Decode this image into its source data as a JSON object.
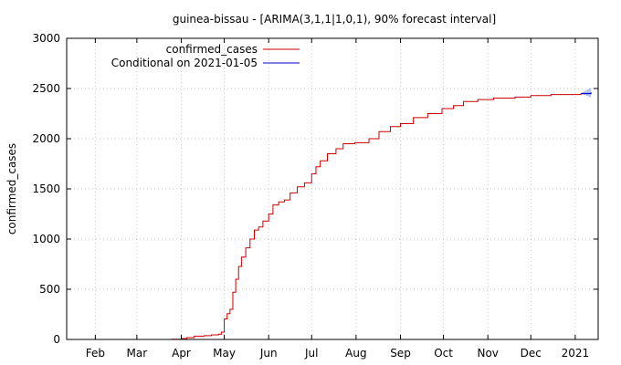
{
  "chart_data": {
    "type": "line",
    "title": "guinea-bissau -  [ARIMA(3,1,1|1,0,1), 90% forecast interval]",
    "ylabel": "confirmed_cases",
    "xlabel": "",
    "ylim": [
      0,
      3000
    ],
    "xlim": [
      "2020-01-12",
      "2021-01-17"
    ],
    "yticks": [
      0,
      500,
      1000,
      1500,
      2000,
      2500,
      3000
    ],
    "xticks": [
      {
        "date": "2020-02-01",
        "label": "Feb"
      },
      {
        "date": "2020-03-01",
        "label": "Mar"
      },
      {
        "date": "2020-04-01",
        "label": "Apr"
      },
      {
        "date": "2020-05-01",
        "label": "May"
      },
      {
        "date": "2020-06-01",
        "label": "Jun"
      },
      {
        "date": "2020-07-01",
        "label": "Jul"
      },
      {
        "date": "2020-08-01",
        "label": "Aug"
      },
      {
        "date": "2020-09-01",
        "label": "Sep"
      },
      {
        "date": "2020-10-01",
        "label": "Oct"
      },
      {
        "date": "2020-11-01",
        "label": "Nov"
      },
      {
        "date": "2020-12-01",
        "label": "Dec"
      },
      {
        "date": "2021-01-01",
        "label": "2021"
      }
    ],
    "grid": true,
    "legend_position": "top-left",
    "series": [
      {
        "name": "confirmed_cases",
        "color": "#cc0000",
        "points": [
          [
            "2020-03-25",
            2
          ],
          [
            "2020-04-01",
            9
          ],
          [
            "2020-04-05",
            18
          ],
          [
            "2020-04-10",
            33
          ],
          [
            "2020-04-17",
            38
          ],
          [
            "2020-04-22",
            45
          ],
          [
            "2020-04-27",
            52
          ],
          [
            "2020-04-29",
            73
          ],
          [
            "2020-05-01",
            205
          ],
          [
            "2020-05-03",
            257
          ],
          [
            "2020-05-05",
            300
          ],
          [
            "2020-05-07",
            470
          ],
          [
            "2020-05-09",
            600
          ],
          [
            "2020-05-11",
            727
          ],
          [
            "2020-05-13",
            820
          ],
          [
            "2020-05-16",
            913
          ],
          [
            "2020-05-19",
            1000
          ],
          [
            "2020-05-22",
            1090
          ],
          [
            "2020-05-25",
            1120
          ],
          [
            "2020-05-28",
            1180
          ],
          [
            "2020-06-01",
            1250
          ],
          [
            "2020-06-04",
            1340
          ],
          [
            "2020-06-08",
            1370
          ],
          [
            "2020-06-12",
            1390
          ],
          [
            "2020-06-16",
            1460
          ],
          [
            "2020-06-21",
            1520
          ],
          [
            "2020-06-26",
            1560
          ],
          [
            "2020-07-01",
            1650
          ],
          [
            "2020-07-04",
            1720
          ],
          [
            "2020-07-07",
            1780
          ],
          [
            "2020-07-12",
            1850
          ],
          [
            "2020-07-18",
            1900
          ],
          [
            "2020-07-23",
            1950
          ],
          [
            "2020-07-31",
            1960
          ],
          [
            "2020-08-10",
            2000
          ],
          [
            "2020-08-17",
            2070
          ],
          [
            "2020-08-25",
            2120
          ],
          [
            "2020-09-01",
            2150
          ],
          [
            "2020-09-10",
            2210
          ],
          [
            "2020-09-20",
            2250
          ],
          [
            "2020-09-30",
            2300
          ],
          [
            "2020-10-08",
            2330
          ],
          [
            "2020-10-15",
            2370
          ],
          [
            "2020-10-25",
            2390
          ],
          [
            "2020-11-05",
            2405
          ],
          [
            "2020-11-20",
            2415
          ],
          [
            "2020-12-01",
            2430
          ],
          [
            "2020-12-15",
            2440
          ],
          [
            "2021-01-05",
            2450
          ]
        ]
      },
      {
        "name": "Conditional on 2021-01-05",
        "color": "#0000cc",
        "points": [
          [
            "2021-01-05",
            2450
          ],
          [
            "2021-01-12",
            2460
          ]
        ]
      }
    ],
    "forecast_interval": {
      "color": "#b8c4ee",
      "upper": [
        [
          "2021-01-05",
          2451
        ],
        [
          "2021-01-12",
          2510
        ]
      ],
      "lower": [
        [
          "2021-01-05",
          2449
        ],
        [
          "2021-01-12",
          2410
        ]
      ]
    }
  }
}
